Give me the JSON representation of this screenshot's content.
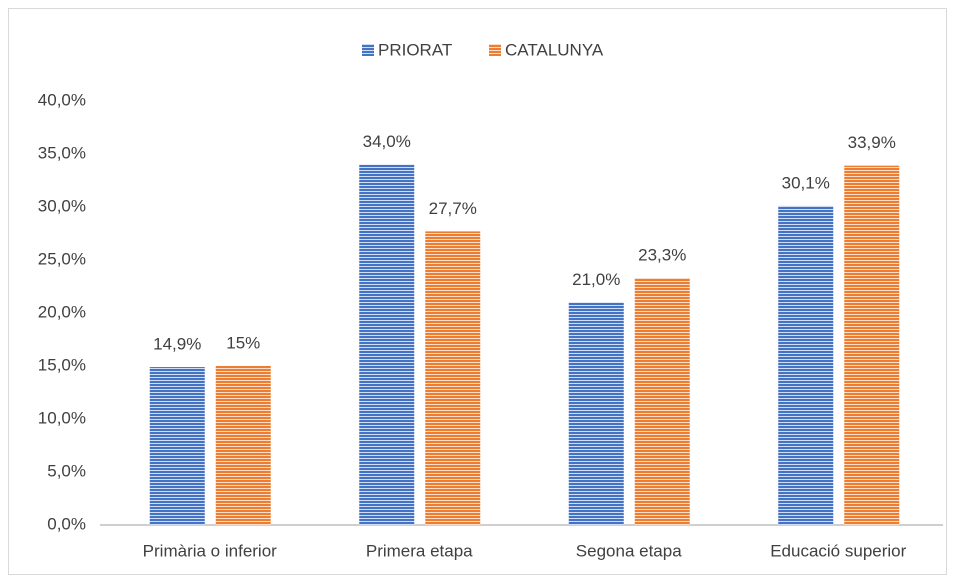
{
  "chart_data": {
    "type": "bar",
    "categories": [
      "Primària o inferior",
      "Primera etapa",
      "Segona etapa",
      "Educació superior"
    ],
    "series": [
      {
        "name": "PRIORAT",
        "color": "#4472c4",
        "values": [
          14.9,
          34.0,
          21.0,
          30.1
        ],
        "value_labels": [
          "14,9%",
          "34,0%",
          "21,0%",
          "30,1%"
        ]
      },
      {
        "name": "CATALUNYA",
        "color": "#ed7d31",
        "values": [
          15,
          27.7,
          23.3,
          33.9
        ],
        "value_labels": [
          "15%",
          "27,7%",
          "23,3%",
          "33,9%"
        ]
      }
    ],
    "ylim": [
      0,
      40
    ],
    "yticks": [
      {
        "value": 0,
        "label": "0,0%"
      },
      {
        "value": 5,
        "label": "5,0%"
      },
      {
        "value": 10,
        "label": "10,0%"
      },
      {
        "value": 15,
        "label": "15,0%"
      },
      {
        "value": 20,
        "label": "20,0%"
      },
      {
        "value": 25,
        "label": "25,0%"
      },
      {
        "value": 30,
        "label": "30,0%"
      },
      {
        "value": 35,
        "label": "35,0%"
      },
      {
        "value": 40,
        "label": "40,0%"
      }
    ],
    "grid": false,
    "legend": "top"
  }
}
